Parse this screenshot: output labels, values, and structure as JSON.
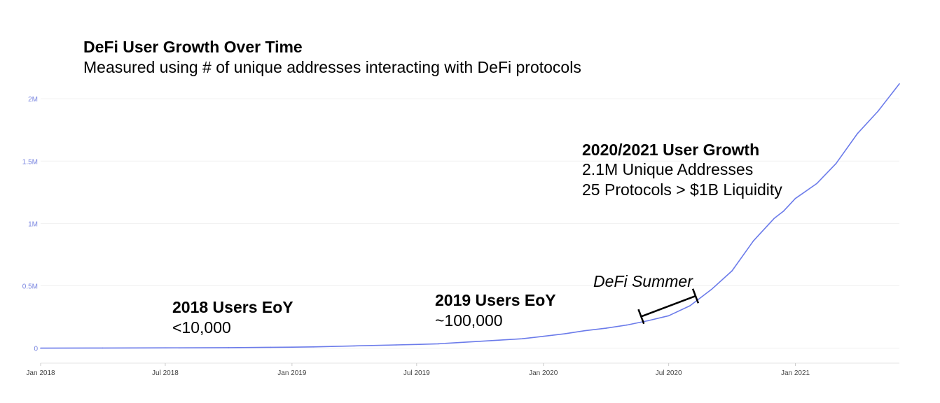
{
  "chart_data": {
    "type": "line",
    "title": "DeFi User Growth Over Time",
    "subtitle": "Measured using # of unique addresses interacting with DeFi protocols",
    "xlabel": "",
    "ylabel": "",
    "ylim": [
      -120000,
      2130000
    ],
    "y_ticks": [
      {
        "value": 0,
        "label": "0"
      },
      {
        "value": 500000,
        "label": "0.5M"
      },
      {
        "value": 1000000,
        "label": "1M"
      },
      {
        "value": 1500000,
        "label": "1.5M"
      },
      {
        "value": 2000000,
        "label": "2M"
      }
    ],
    "x_ticks": [
      {
        "value": "2018-01-01",
        "label": "Jan 2018"
      },
      {
        "value": "2018-07-01",
        "label": "Jul 2018"
      },
      {
        "value": "2019-01-01",
        "label": "Jan 2019"
      },
      {
        "value": "2019-07-01",
        "label": "Jul 2019"
      },
      {
        "value": "2020-01-01",
        "label": "Jan 2020"
      },
      {
        "value": "2020-07-01",
        "label": "Jul 2020"
      },
      {
        "value": "2021-01-01",
        "label": "Jan 2021"
      }
    ],
    "grid": true,
    "series": [
      {
        "color": "#6b7bea",
        "points": [
          {
            "x": "2018-01-01",
            "y": 0
          },
          {
            "x": "2018-04-01",
            "y": 1000
          },
          {
            "x": "2018-07-01",
            "y": 2500
          },
          {
            "x": "2018-10-01",
            "y": 4000
          },
          {
            "x": "2018-12-01",
            "y": 7000
          },
          {
            "x": "2019-01-01",
            "y": 8000
          },
          {
            "x": "2019-02-01",
            "y": 10000
          },
          {
            "x": "2019-04-01",
            "y": 18000
          },
          {
            "x": "2019-06-01",
            "y": 26000
          },
          {
            "x": "2019-07-01",
            "y": 30000
          },
          {
            "x": "2019-08-01",
            "y": 35000
          },
          {
            "x": "2019-10-01",
            "y": 55000
          },
          {
            "x": "2019-12-01",
            "y": 75000
          },
          {
            "x": "2020-01-01",
            "y": 95000
          },
          {
            "x": "2020-02-01",
            "y": 115000
          },
          {
            "x": "2020-03-01",
            "y": 140000
          },
          {
            "x": "2020-04-01",
            "y": 160000
          },
          {
            "x": "2020-05-01",
            "y": 185000
          },
          {
            "x": "2020-06-01",
            "y": 220000
          },
          {
            "x": "2020-07-01",
            "y": 260000
          },
          {
            "x": "2020-08-01",
            "y": 340000
          },
          {
            "x": "2020-09-01",
            "y": 470000
          },
          {
            "x": "2020-10-01",
            "y": 620000
          },
          {
            "x": "2020-11-01",
            "y": 860000
          },
          {
            "x": "2020-12-01",
            "y": 1040000
          },
          {
            "x": "2020-12-15",
            "y": 1100000
          },
          {
            "x": "2021-01-01",
            "y": 1200000
          },
          {
            "x": "2021-02-01",
            "y": 1320000
          },
          {
            "x": "2021-03-01",
            "y": 1480000
          },
          {
            "x": "2021-04-01",
            "y": 1720000
          },
          {
            "x": "2021-05-01",
            "y": 1900000
          },
          {
            "x": "2021-06-01",
            "y": 2120000
          }
        ]
      }
    ],
    "annotations": {
      "y2018": {
        "heading": "2018 Users EoY",
        "value": "<10,000"
      },
      "y2019": {
        "heading": "2019 Users EoY",
        "value": "~100,000"
      },
      "growth": {
        "heading": "2020/2021 User Growth",
        "line1": "2.1M Unique Addresses",
        "line2": "25 Protocols > $1B Liquidity"
      },
      "summer": {
        "label": "DeFi Summer",
        "start": "2020-05-22",
        "end": "2020-08-09"
      }
    }
  }
}
